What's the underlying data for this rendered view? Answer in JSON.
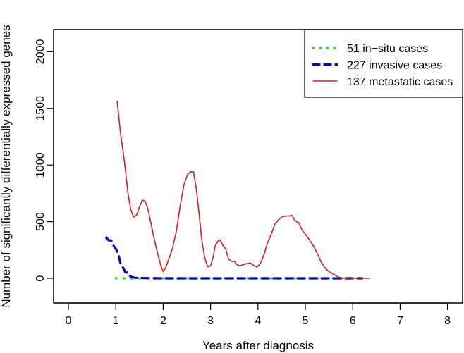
{
  "chart_data": {
    "type": "line",
    "title": "",
    "xlabel": "Years after diagnosis",
    "ylabel": "Number of significantly differentially expressed genes",
    "xlim": [
      0,
      8
    ],
    "ylim": [
      0,
      2000
    ],
    "x_ticks": [
      0,
      1,
      2,
      3,
      4,
      5,
      6,
      7,
      8
    ],
    "y_ticks": [
      0,
      500,
      1000,
      1500,
      2000
    ],
    "legend_position": "top-right",
    "grid": false,
    "series": [
      {
        "name": "51 in−situ cases",
        "color": "#33dd33",
        "style": "dotted",
        "x": [
          1.0,
          1.5,
          2.0,
          2.5,
          3.0,
          3.5,
          4.0,
          4.5,
          5.0,
          5.5,
          6.0
        ],
        "y": [
          0,
          0,
          0,
          0,
          0,
          0,
          0,
          0,
          0,
          0,
          0
        ]
      },
      {
        "name": "227 invasive cases",
        "color": "#0000cc",
        "style": "dashed",
        "x": [
          0.8,
          0.85,
          0.9,
          0.95,
          1.0,
          1.05,
          1.1,
          1.15,
          1.2,
          1.25,
          1.3,
          1.35,
          1.4,
          1.6,
          2.0,
          2.5,
          3.0,
          3.5,
          4.0,
          4.5,
          5.0,
          5.5,
          6.0,
          6.2
        ],
        "y": [
          360,
          335,
          335,
          290,
          260,
          220,
          130,
          95,
          55,
          50,
          20,
          10,
          5,
          2,
          0,
          0,
          0,
          0,
          0,
          0,
          0,
          0,
          0,
          0
        ]
      },
      {
        "name": "137 metastatic cases",
        "color": "#cc2222",
        "style": "solid",
        "x": [
          1.03,
          1.1,
          1.18,
          1.26,
          1.32,
          1.38,
          1.44,
          1.5,
          1.56,
          1.62,
          1.68,
          1.75,
          1.82,
          1.9,
          1.96,
          2.0,
          2.05,
          2.12,
          2.2,
          2.28,
          2.36,
          2.44,
          2.52,
          2.58,
          2.64,
          2.7,
          2.76,
          2.82,
          2.88,
          2.94,
          3.0,
          3.05,
          3.1,
          3.16,
          3.2,
          3.26,
          3.32,
          3.38,
          3.44,
          3.5,
          3.56,
          3.62,
          3.68,
          3.76,
          3.84,
          3.92,
          3.98,
          4.05,
          4.12,
          4.2,
          4.28,
          4.36,
          4.44,
          4.52,
          4.6,
          4.66,
          4.72,
          4.78,
          4.86,
          4.94,
          5.02,
          5.1,
          5.18,
          5.26,
          5.34,
          5.42,
          5.5,
          5.58,
          5.66,
          5.74,
          5.82,
          5.9,
          6.0,
          6.1,
          6.2,
          6.35
        ],
        "y": [
          1560,
          1280,
          1040,
          740,
          600,
          540,
          560,
          630,
          690,
          680,
          610,
          470,
          330,
          190,
          100,
          60,
          90,
          170,
          270,
          420,
          640,
          830,
          920,
          940,
          940,
          790,
          560,
          320,
          180,
          100,
          110,
          180,
          290,
          330,
          340,
          290,
          260,
          170,
          150,
          150,
          120,
          110,
          120,
          130,
          135,
          110,
          100,
          130,
          200,
          310,
          390,
          480,
          520,
          545,
          550,
          550,
          555,
          510,
          490,
          420,
          380,
          330,
          280,
          210,
          140,
          90,
          60,
          40,
          20,
          5,
          0,
          0,
          0,
          0,
          0,
          0
        ]
      }
    ]
  }
}
